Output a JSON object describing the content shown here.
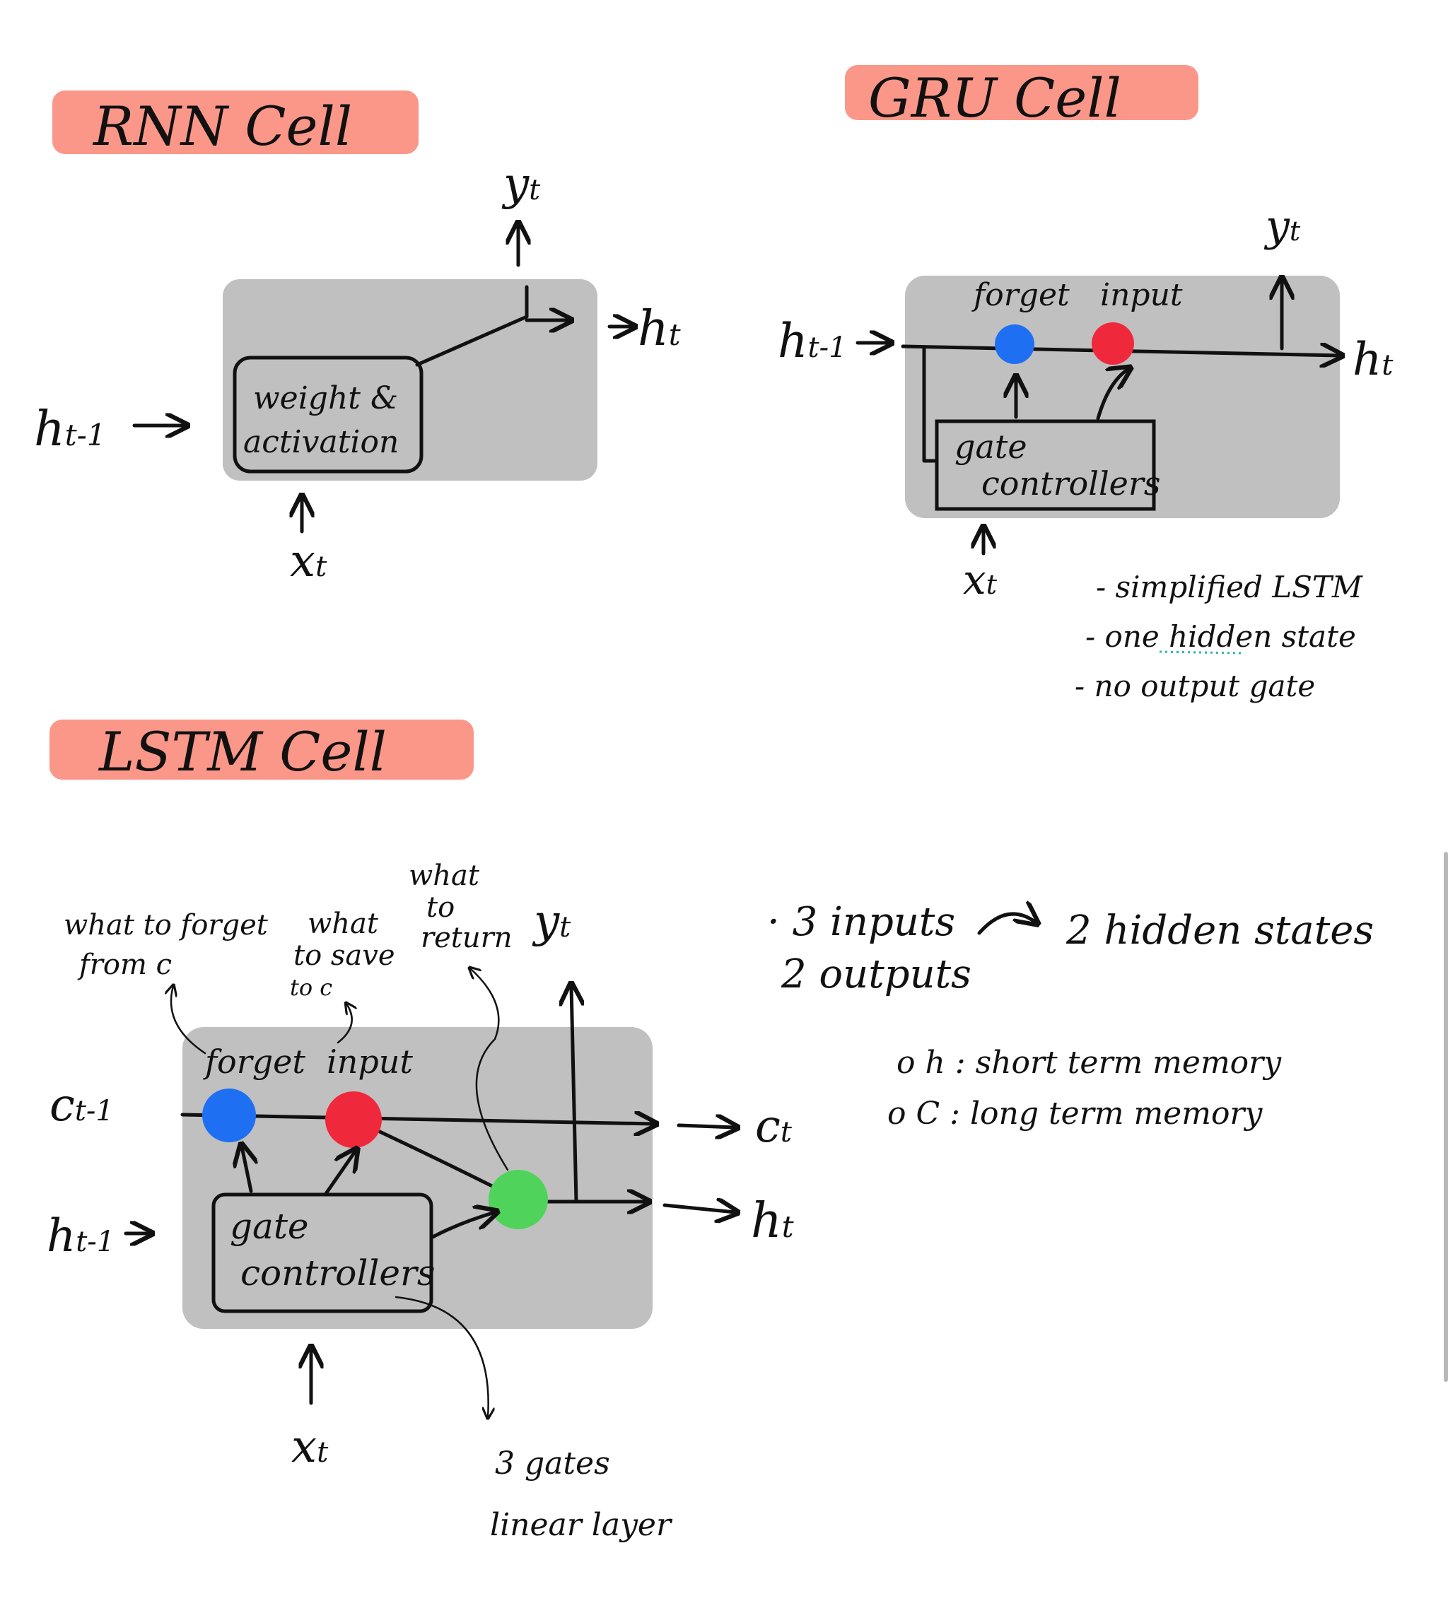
{
  "rnn": {
    "title": "RNN Cell",
    "block_label_1": "weight &",
    "block_label_2": "activation",
    "input_h": "h",
    "input_h_sub": "t-1",
    "input_x": "x",
    "input_x_sub": "t",
    "output_y": "y",
    "output_y_sub": "t",
    "output_h": "h",
    "output_h_sub": "t"
  },
  "gru": {
    "title": "GRU Cell",
    "forget_label": "forget",
    "input_label": "input",
    "controllers_label_1": "gate",
    "controllers_label_2": "controllers",
    "input_h": "h",
    "input_h_sub": "t-1",
    "input_x": "x",
    "input_x_sub": "t",
    "output_y": "y",
    "output_y_sub": "t",
    "output_h": "h",
    "output_h_sub": "t",
    "notes": [
      "- simplified LSTM",
      "- one hidden state",
      "- no output gate"
    ]
  },
  "lstm": {
    "title": "LSTM Cell",
    "forget_label": "forget",
    "input_label": "input",
    "controllers_label_1": "gate",
    "controllers_label_2": "controllers",
    "input_c": "c",
    "input_c_sub": "t-1",
    "input_h": "h",
    "input_h_sub": "t-1",
    "input_x": "x",
    "input_x_sub": "t",
    "output_y": "y",
    "output_y_sub": "t",
    "output_c": "c",
    "output_c_sub": "t",
    "output_h": "h",
    "output_h_sub": "t",
    "annot_forget_1": "what to forget",
    "annot_forget_2": "from c",
    "annot_save_1": "what",
    "annot_save_2": "to save",
    "annot_save_3": "to c",
    "annot_return_1": "what",
    "annot_return_2": "to",
    "annot_return_3": "return",
    "annot_gates_1": "3 gates",
    "annot_gates_2": "linear layer",
    "summary_1a": "· 3 inputs",
    "summary_1b": "2 hidden states",
    "summary_2": "2 outputs",
    "memory_h": "o h :  short term memory",
    "memory_c": "o C :   long term memory"
  },
  "colors": {
    "title_highlight": "#fb8c7c",
    "cell_fill": "#c0c0c0",
    "forget_gate": "#1f6ff2",
    "input_gate": "#f0283c",
    "output_gate": "#4fd35a"
  }
}
